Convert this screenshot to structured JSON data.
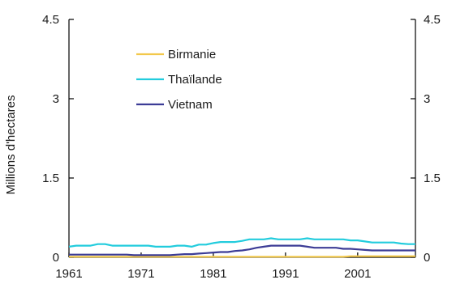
{
  "chart_data": {
    "type": "line",
    "title": "",
    "xlabel": "",
    "ylabel": "Millions d'hectares",
    "ylim": [
      0,
      4.5
    ],
    "y_ticks": [
      "0",
      "1.5",
      "3",
      "4.5"
    ],
    "x_ticks": [
      "1961",
      "1971",
      "1981",
      "1991",
      "2001"
    ],
    "x": [
      1961,
      1962,
      1963,
      1964,
      1965,
      1966,
      1967,
      1968,
      1969,
      1970,
      1971,
      1972,
      1973,
      1974,
      1975,
      1976,
      1977,
      1978,
      1979,
      1980,
      1981,
      1982,
      1983,
      1984,
      1985,
      1986,
      1987,
      1988,
      1989,
      1990,
      1991,
      1992,
      1993,
      1994,
      1995,
      1996,
      1997,
      1998,
      1999,
      2000,
      2001,
      2002,
      2003,
      2004,
      2005,
      2006,
      2007,
      2008,
      2009
    ],
    "legend": "upper-left",
    "grid": false,
    "series": [
      {
        "name": "Birmanie",
        "color": "#f2c84b",
        "values": [
          0.01,
          0.01,
          0.01,
          0.01,
          0.01,
          0.01,
          0.01,
          0.01,
          0.01,
          0.01,
          0.01,
          0.01,
          0.01,
          0.01,
          0.01,
          0.01,
          0.01,
          0.01,
          0.01,
          0.01,
          0.01,
          0.01,
          0.01,
          0.01,
          0.01,
          0.01,
          0.01,
          0.01,
          0.01,
          0.01,
          0.01,
          0.01,
          0.01,
          0.01,
          0.01,
          0.01,
          0.01,
          0.01,
          0.01,
          0.02,
          0.02,
          0.02,
          0.02,
          0.02,
          0.02,
          0.02,
          0.02,
          0.02,
          0.02
        ]
      },
      {
        "name": "Thaïlande",
        "color": "#22ccdd",
        "values": [
          0.2,
          0.22,
          0.22,
          0.22,
          0.25,
          0.25,
          0.22,
          0.22,
          0.22,
          0.22,
          0.22,
          0.22,
          0.2,
          0.2,
          0.2,
          0.22,
          0.22,
          0.2,
          0.24,
          0.24,
          0.27,
          0.29,
          0.29,
          0.29,
          0.31,
          0.34,
          0.34,
          0.34,
          0.36,
          0.34,
          0.34,
          0.34,
          0.34,
          0.36,
          0.34,
          0.34,
          0.34,
          0.34,
          0.34,
          0.32,
          0.32,
          0.3,
          0.28,
          0.28,
          0.28,
          0.28,
          0.26,
          0.25,
          0.25
        ]
      },
      {
        "name": "Vietnam",
        "color": "#3c3c96",
        "values": [
          0.05,
          0.05,
          0.05,
          0.05,
          0.05,
          0.05,
          0.05,
          0.05,
          0.05,
          0.04,
          0.04,
          0.04,
          0.04,
          0.04,
          0.04,
          0.05,
          0.06,
          0.06,
          0.07,
          0.08,
          0.09,
          0.1,
          0.1,
          0.12,
          0.13,
          0.15,
          0.18,
          0.2,
          0.22,
          0.22,
          0.22,
          0.22,
          0.22,
          0.2,
          0.18,
          0.18,
          0.18,
          0.18,
          0.16,
          0.16,
          0.15,
          0.14,
          0.13,
          0.13,
          0.13,
          0.13,
          0.13,
          0.13,
          0.13
        ]
      }
    ]
  }
}
